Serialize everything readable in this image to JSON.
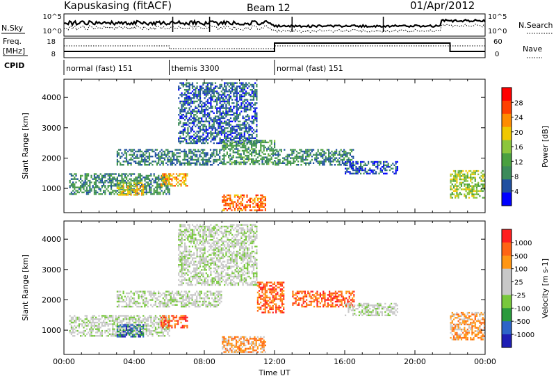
{
  "header": {
    "station": "Kapuskasing (fitACF)",
    "beam": "Beam 12",
    "date": "01/Apr/2012"
  },
  "strips": {
    "nsky_label": "N.Sky",
    "nsearch_label": "N.Search",
    "noise_ticks": [
      "10^5",
      "10^0"
    ],
    "freq_label_1": "Freq.",
    "freq_label_2": "[MHz]",
    "freq_ticks": [
      "18",
      "8"
    ],
    "nave_label": "Nave",
    "nave_ticks": [
      "60",
      "0"
    ],
    "cpid_label": "CPID"
  },
  "cpid_segments": [
    {
      "name": "normal (fast) 151",
      "start": 0,
      "end": 6
    },
    {
      "name": "themis 3300",
      "start": 6,
      "end": 12
    },
    {
      "name": "normal (fast) 151",
      "start": 12,
      "end": 24
    }
  ],
  "colors": {
    "power": [
      "#0000ff",
      "#1f4fa0",
      "#3c8b5a",
      "#4aa040",
      "#8cc63c",
      "#f0c800",
      "#ff8c00",
      "#ff4000",
      "#ff0000"
    ],
    "velocity": [
      "#1e1eb4",
      "#2d64c8",
      "#2a9a3c",
      "#78c83c",
      "#c8c8c8",
      "#c8c8c8",
      "#ff9614",
      "#ff6414",
      "#ff1e1e"
    ]
  },
  "chart_data": [
    {
      "type": "heatmap",
      "parameter": "power",
      "xlabel": "Time UT",
      "ylabel": "Slant Range [km]",
      "xlim": [
        0,
        24
      ],
      "ylim": [
        200,
        4600
      ],
      "xticks": [
        "00:00",
        "04:00",
        "08:00",
        "12:00",
        "16:00",
        "20:00",
        "00:00"
      ],
      "yticks": [
        "1000",
        "2000",
        "3000",
        "4000"
      ],
      "colorbar": {
        "label": "Power [dB]",
        "ticks": [
          "28",
          "24",
          "20",
          "16",
          "12",
          "8",
          "4"
        ],
        "range": [
          0,
          32
        ]
      },
      "echo_regions": [
        {
          "t": [
            0.3,
            6.0
          ],
          "r": [
            800,
            1500
          ],
          "level": 10
        },
        {
          "t": [
            3.0,
            4.5
          ],
          "r": [
            800,
            1200
          ],
          "level": 22
        },
        {
          "t": [
            3.0,
            9.0
          ],
          "r": [
            1800,
            2300
          ],
          "level": 9
        },
        {
          "t": [
            5.5,
            7.0
          ],
          "r": [
            1100,
            1500
          ],
          "level": 24
        },
        {
          "t": [
            6.5,
            11.0
          ],
          "r": [
            2500,
            4500
          ],
          "level": 7
        },
        {
          "t": [
            9.0,
            11.5
          ],
          "r": [
            300,
            800
          ],
          "level": 28
        },
        {
          "t": [
            9.0,
            12.0
          ],
          "r": [
            1800,
            2600
          ],
          "level": 12
        },
        {
          "t": [
            12.0,
            16.5
          ],
          "r": [
            1800,
            2300
          ],
          "level": 10
        },
        {
          "t": [
            16.0,
            19.0
          ],
          "r": [
            1500,
            1900
          ],
          "level": 6
        },
        {
          "t": [
            22.0,
            24.0
          ],
          "r": [
            700,
            1600
          ],
          "level": 18
        }
      ]
    },
    {
      "type": "heatmap",
      "parameter": "velocity",
      "xlabel": "Time UT",
      "ylabel": "Slant Range [km]",
      "xlim": [
        0,
        24
      ],
      "ylim": [
        200,
        4600
      ],
      "xticks": [
        "00:00",
        "04:00",
        "08:00",
        "12:00",
        "16:00",
        "20:00",
        "00:00"
      ],
      "yticks": [
        "1000",
        "2000",
        "3000",
        "4000"
      ],
      "colorbar": {
        "label": "Velocity [m s-1]",
        "ticks": [
          "1000",
          "500",
          "100",
          "25",
          "-25",
          "-100",
          "-500",
          "-1000"
        ]
      },
      "echo_regions": [
        {
          "t": [
            0.3,
            6.0
          ],
          "r": [
            800,
            1500
          ],
          "class": 4
        },
        {
          "t": [
            3.0,
            4.5
          ],
          "r": [
            800,
            1200
          ],
          "class": 1
        },
        {
          "t": [
            3.0,
            9.0
          ],
          "r": [
            1800,
            2300
          ],
          "class": 4
        },
        {
          "t": [
            5.5,
            7.0
          ],
          "r": [
            1100,
            1500
          ],
          "class": 7
        },
        {
          "t": [
            6.5,
            11.0
          ],
          "r": [
            2500,
            4500
          ],
          "class": 4
        },
        {
          "t": [
            9.0,
            11.5
          ],
          "r": [
            300,
            800
          ],
          "class": 6
        },
        {
          "t": [
            11.0,
            12.5
          ],
          "r": [
            1600,
            2600
          ],
          "class": 7
        },
        {
          "t": [
            13.0,
            16.5
          ],
          "r": [
            1800,
            2300
          ],
          "class": 7
        },
        {
          "t": [
            16.0,
            19.0
          ],
          "r": [
            1500,
            1900
          ],
          "class": 4
        },
        {
          "t": [
            22.0,
            24.0
          ],
          "r": [
            700,
            1600
          ],
          "class": 6
        }
      ]
    }
  ]
}
